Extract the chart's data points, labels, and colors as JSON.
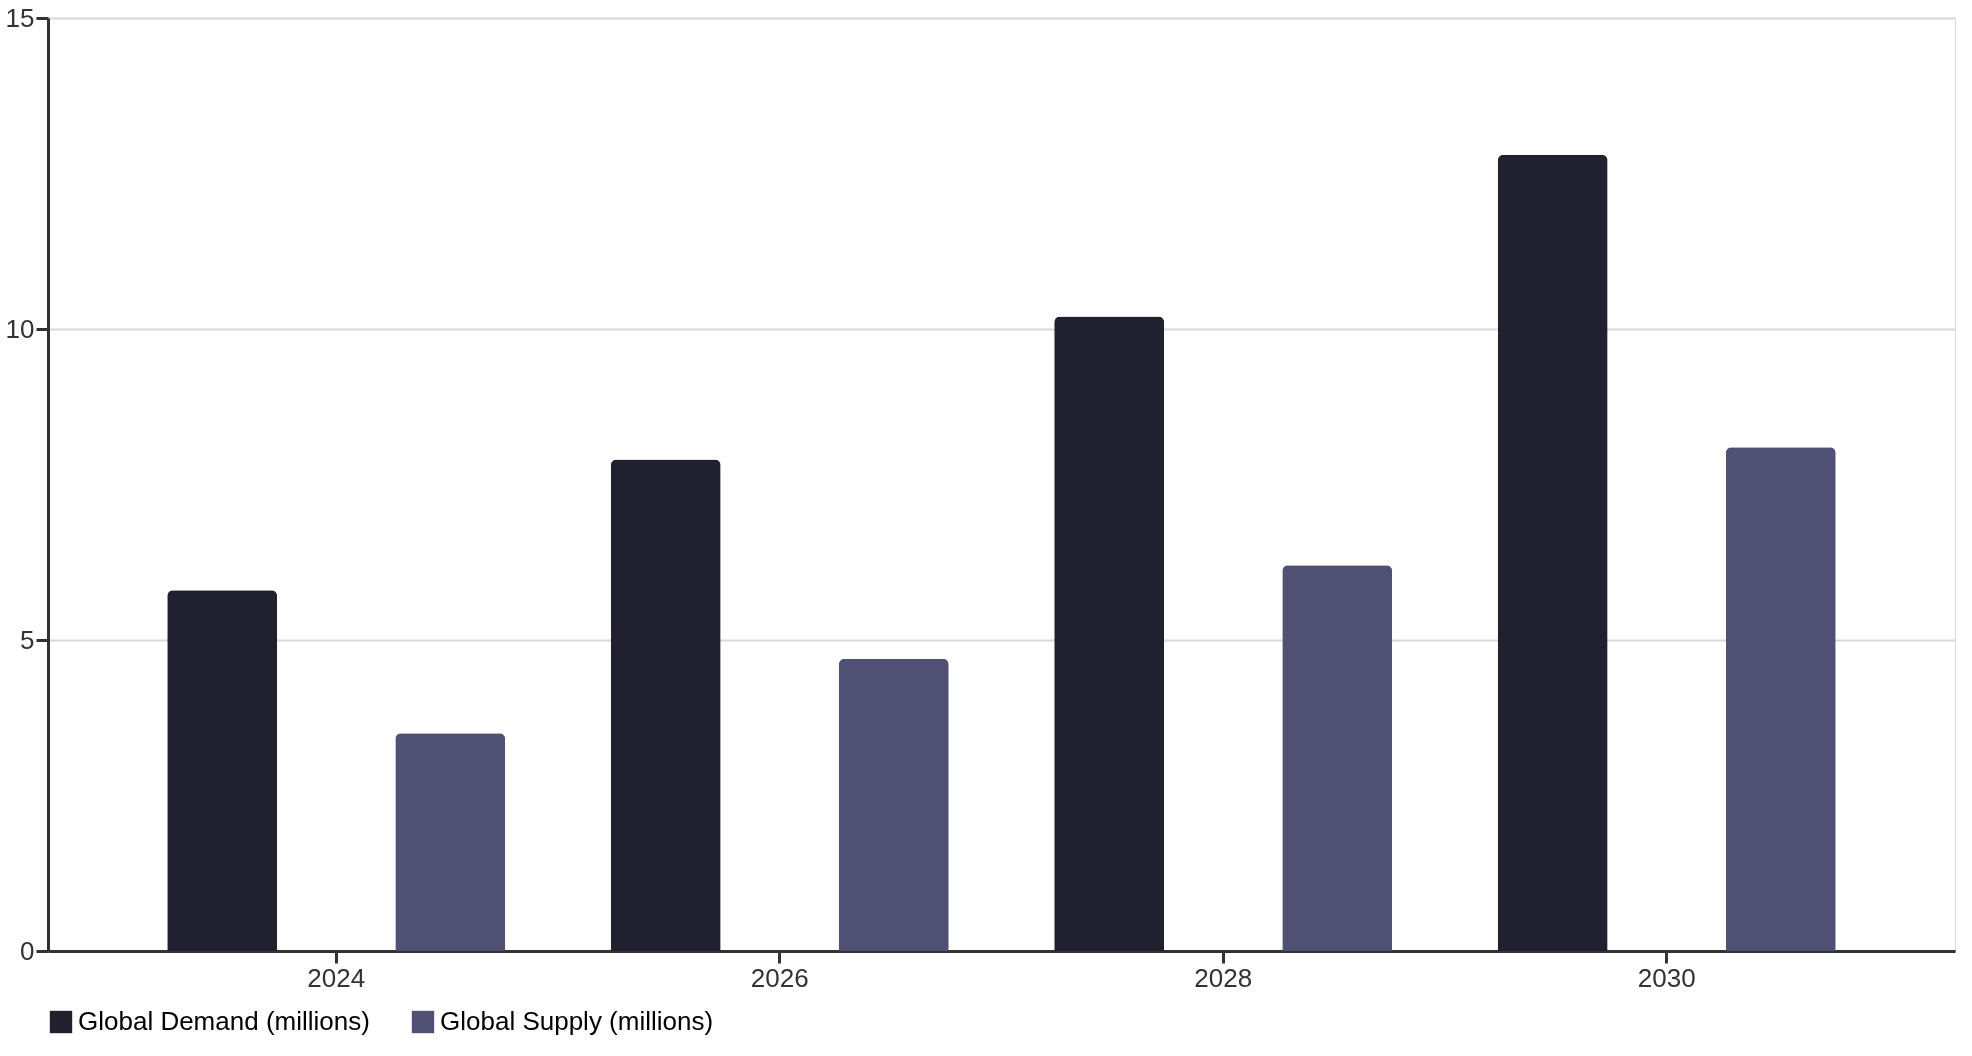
{
  "chart_data": {
    "type": "bar",
    "categories": [
      "2024",
      "2026",
      "2028",
      "2030"
    ],
    "series": [
      {
        "name": "Global Demand (millions)",
        "color": "#20202e",
        "values": [
          5.8,
          7.9,
          10.2,
          12.8
        ]
      },
      {
        "name": "Global Supply (millions)",
        "color": "#505074",
        "values": [
          3.5,
          4.7,
          6.2,
          8.1
        ]
      }
    ],
    "ylim": [
      0,
      15
    ],
    "yticks": [
      0,
      5,
      10,
      15
    ],
    "grid": "y",
    "legend": "bottom"
  }
}
